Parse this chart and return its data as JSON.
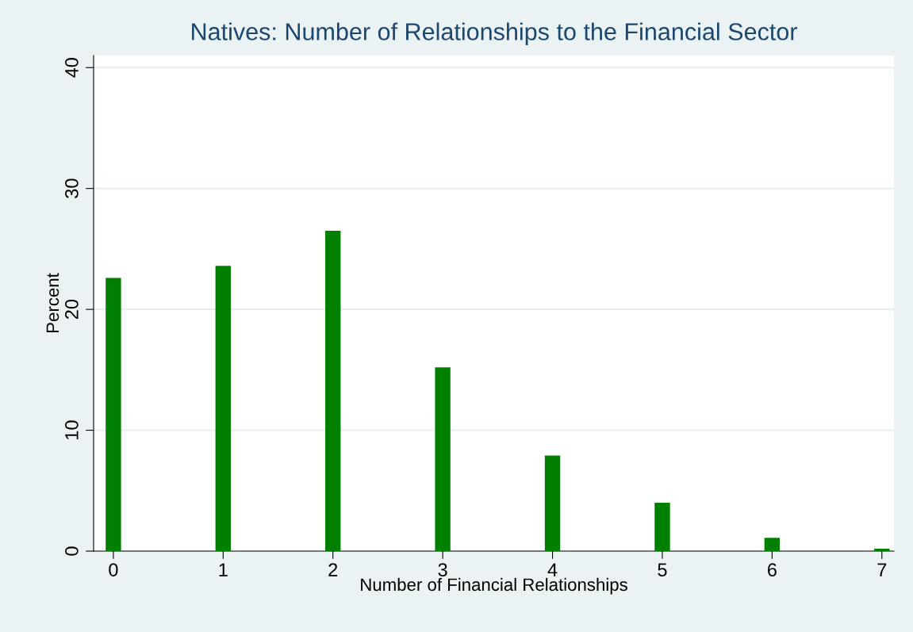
{
  "chart_data": {
    "type": "bar",
    "title": "Natives: Number of Relationships to the Financial Sector",
    "xlabel": "Number of Financial Relationships",
    "ylabel": "Percent",
    "x": [
      0,
      1,
      2,
      3,
      4,
      5,
      6,
      7
    ],
    "series": [
      {
        "color": "#007f00",
        "values": [
          22.6,
          23.6,
          26.5,
          15.2,
          7.9,
          4.0,
          1.1,
          0.2
        ]
      }
    ],
    "xlim": [
      -0.18,
      7.11
    ],
    "xticks": [
      0,
      1,
      2,
      3,
      4,
      5,
      6,
      7
    ],
    "ylim": [
      0,
      41
    ],
    "yticks": [
      0,
      10,
      20,
      30,
      40
    ],
    "grid": "y",
    "legend": false
  }
}
